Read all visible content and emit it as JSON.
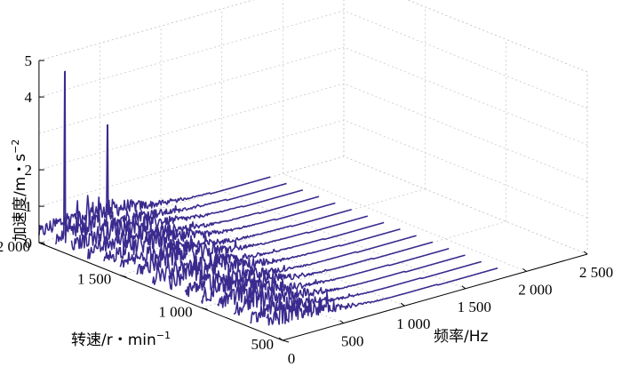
{
  "chart_data": {
    "type": "waterfall",
    "xlabel": "频率/Hz",
    "ylabel": "转速/r・min",
    "ylabel_exponent": "−1",
    "zlabel": "加速度/m・s",
    "zlabel_exponent": "−2",
    "x_ticks": [
      "0",
      "500",
      "1 000",
      "1 500",
      "2 000",
      "2 500"
    ],
    "y_ticks": [
      "2 000",
      "1 500",
      "1 000",
      "500"
    ],
    "z_ticks": [
      "0",
      "1",
      "2",
      "4",
      "5"
    ],
    "xlim": [
      0,
      2500
    ],
    "ylim": [
      500,
      2000
    ],
    "zlim": [
      0,
      5
    ],
    "speeds": [
      600,
      700,
      800,
      900,
      1000,
      1100,
      1200,
      1300,
      1400,
      1500,
      1600,
      1700,
      1800,
      1900,
      2000
    ],
    "peaks": [
      {
        "speed": 1900,
        "frequency": 80,
        "acceleration": 4.8
      },
      {
        "speed": 1900,
        "frequency": 430,
        "acceleration": 3.0
      }
    ]
  }
}
